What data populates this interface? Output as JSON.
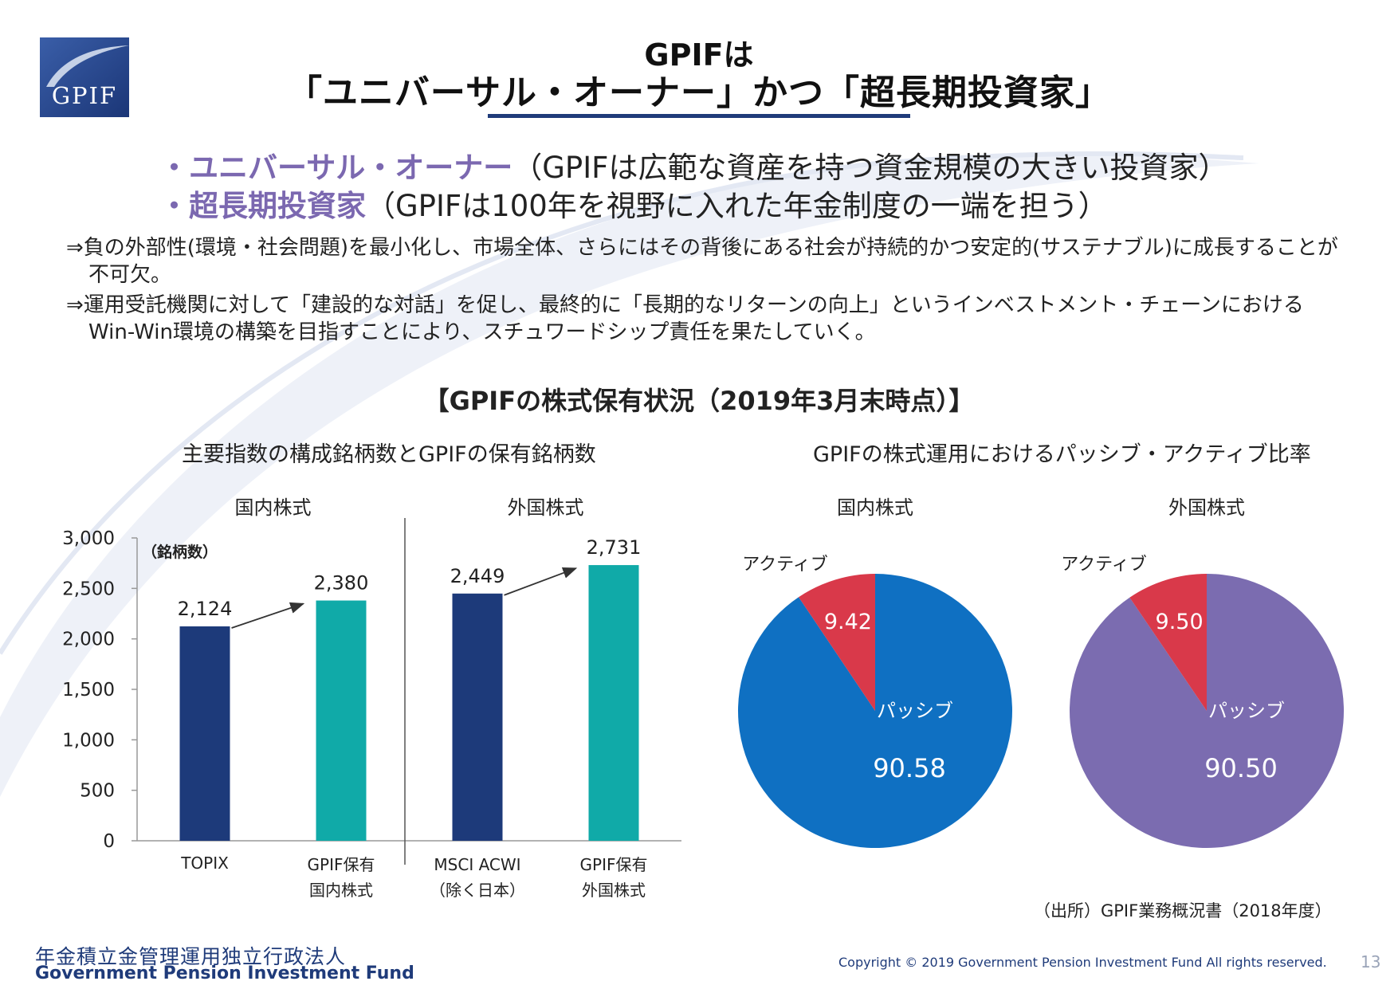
{
  "header": {
    "logo_text": "GPIF",
    "title_line1": "GPIFは",
    "title_line2": "「ユニバーサル・オーナー」かつ「超長期投資家」"
  },
  "bullets": [
    {
      "emphasis": "・ユニバーサル・オーナー",
      "text": "（GPIFは広範な資産を持つ資金規模の大きい投資家）"
    },
    {
      "emphasis": "・超長期投資家",
      "text": "（GPIFは100年を視野に入れた年金制度の一端を担う）"
    }
  ],
  "paragraphs": [
    {
      "line1": "⇒負の外部性(環境・社会問題)を最小化し、市場全体、さらにはその背後にある社会が持続的かつ安定的(サステナブル)に成長することが",
      "line2": "不可欠。"
    },
    {
      "line1": "⇒運用受託機関に対して「建設的な対話」を促し、最終的に「長期的なリターンの向上」というインベストメント・チェーンにおける",
      "line2": "Win-Win環境の構築を目指すことにより、スチュワードシップ責任を果たしていく。"
    }
  ],
  "section_title": "【GPIFの株式保有状況（2019年3月末時点）】",
  "bar_subtitle": "主要指数の構成銘柄数とGPIFの保有銘柄数",
  "pie_subtitle": "GPIFの株式運用におけるパッシブ・アクティブ比率",
  "chart_data": [
    {
      "type": "bar",
      "title": "主要指数の構成銘柄数とGPIFの保有銘柄数",
      "ylabel": "（銘柄数）",
      "ylim": [
        0,
        3000
      ],
      "yticks": [
        0,
        500,
        1000,
        1500,
        2000,
        2500,
        3000
      ],
      "ytick_labels": [
        "0",
        "500",
        "1,000",
        "1,500",
        "2,000",
        "2,500",
        "3,000"
      ],
      "groups": [
        {
          "label": "国内株式",
          "categories": [
            {
              "line1": "TOPIX",
              "line2": "",
              "value": 2124,
              "value_label": "2,124",
              "color": "#1d3a7a"
            },
            {
              "line1": "GPIF保有",
              "line2": "国内株式",
              "value": 2380,
              "value_label": "2,380",
              "color": "#10aaa8"
            }
          ]
        },
        {
          "label": "外国株式",
          "categories": [
            {
              "line1": "MSCI ACWI",
              "line2": "（除く日本）",
              "value": 2449,
              "value_label": "2,449",
              "color": "#1d3a7a"
            },
            {
              "line1": "GPIF保有",
              "line2": "外国株式",
              "value": 2731,
              "value_label": "2,731",
              "color": "#10aaa8"
            }
          ]
        }
      ]
    },
    {
      "type": "pie",
      "title": "国内株式",
      "slices": [
        {
          "label": "アクティブ",
          "value": 9.42,
          "value_label": "9.42",
          "color": "#d9394a"
        },
        {
          "label": "パッシブ",
          "value": 90.58,
          "value_label": "90.58",
          "color": "#0f70c2"
        }
      ]
    },
    {
      "type": "pie",
      "title": "外国株式",
      "slices": [
        {
          "label": "アクティブ",
          "value": 9.5,
          "value_label": "9.50",
          "color": "#d9394a"
        },
        {
          "label": "パッシブ",
          "value": 90.5,
          "value_label": "90.50",
          "color": "#7b6cb0"
        }
      ]
    }
  ],
  "source": "（出所）GPIF業務概況書（2018年度）",
  "footer": {
    "org_jp": "年金積立金管理運用独立行政法人",
    "org_en": "Government Pension Investment Fund",
    "copyright": "Copyright © 2019 Government Pension Investment Fund All rights reserved.",
    "page_number": "13"
  }
}
